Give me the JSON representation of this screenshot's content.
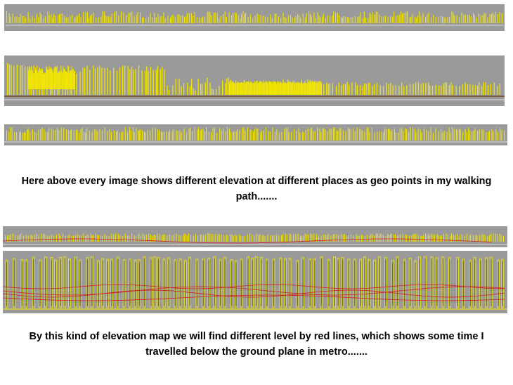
{
  "captions": {
    "top": "Here above every image shows different elevation at different places as geo points  in my walking path.......",
    "bottom": "By this kind of elevation map we will find different level by red lines, which shows some time I travelled  below the ground plane in metro......."
  },
  "colors": {
    "background": "#ffffff",
    "panel": "#9a9a9a",
    "marker": "#f2e600",
    "ground_line": "#dcdcdc",
    "track_line": "#7a5a3a",
    "red_line": "#d42020"
  },
  "panels": [
    {
      "name": "elevation-strip-1",
      "kind": "dense-ground"
    },
    {
      "name": "elevation-strip-2",
      "kind": "varying-heights"
    },
    {
      "name": "elevation-strip-3",
      "kind": "dense-ground"
    },
    {
      "name": "elevation-strip-4",
      "kind": "metro-thin"
    },
    {
      "name": "elevation-strip-5",
      "kind": "metro-outlined"
    }
  ]
}
